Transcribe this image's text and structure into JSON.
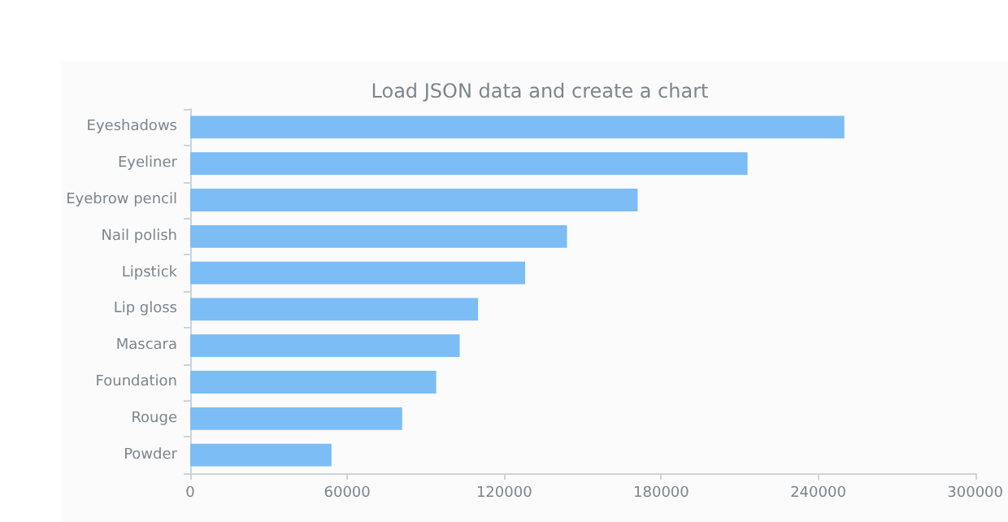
{
  "chart_data": {
    "type": "bar",
    "orientation": "horizontal",
    "title": "Load JSON data and create a chart",
    "categories": [
      "Eyeshadows",
      "Eyeliner",
      "Eyebrow pencil",
      "Nail polish",
      "Lipstick",
      "Lip gloss",
      "Mascara",
      "Foundation",
      "Rouge",
      "Powder"
    ],
    "values": [
      250000,
      213000,
      171000,
      144000,
      128000,
      110000,
      103000,
      94000,
      81000,
      54000
    ],
    "color": "#7cbdf6",
    "xlim": [
      0,
      300000
    ],
    "xticks": [
      0,
      60000,
      120000,
      180000,
      240000,
      300000
    ],
    "grid": false
  }
}
